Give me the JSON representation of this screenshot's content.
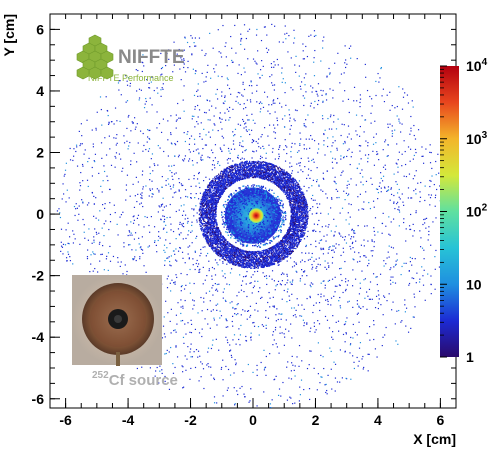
{
  "chart_data": {
    "type": "heatmap",
    "title": "",
    "xlabel": "X [cm]",
    "ylabel": "Y [cm]",
    "xlim": [
      -6.5,
      6.5
    ],
    "ylim": [
      -6.3,
      6.5
    ],
    "x_ticks": [
      "-6",
      "-4",
      "-2",
      "0",
      "2",
      "4",
      "6"
    ],
    "y_ticks": [
      "-6",
      "-4",
      "-2",
      "0",
      "2",
      "4",
      "6"
    ],
    "colorbar": {
      "scale": "log",
      "range": [
        1,
        10000
      ],
      "tick_labels": [
        "1",
        "10",
        "10^2",
        "10^3",
        "10^4"
      ],
      "colormap": [
        "#2a0a6b",
        "#1c2bd4",
        "#1f8fe0",
        "#27c3d6",
        "#5fe0a0",
        "#d4e83a",
        "#f3b52a",
        "#e8461e",
        "#b3000f"
      ]
    },
    "features": [
      {
        "name": "hotspot",
        "center": [
          0.1,
          -0.05
        ],
        "radius_cm": 0.15,
        "peak_counts": 10000
      },
      {
        "name": "inner disk",
        "center": [
          0.0,
          -0.05
        ],
        "radius_cm": 0.9,
        "counts": 30
      },
      {
        "name": "ring",
        "center": [
          0.0,
          0.0
        ],
        "radius_cm": [
          1.2,
          1.75
        ],
        "counts": 2
      },
      {
        "name": "diffuse halo",
        "center": [
          0.0,
          0.0
        ],
        "radius_cm": [
          1.8,
          6.3
        ],
        "counts": 1
      }
    ],
    "grid": false
  },
  "logo": {
    "name": "NIFFTE",
    "subtitle": "NIFFTE Performance",
    "color": "#8cb43c"
  },
  "photo": {
    "caption_superscript": "252",
    "caption": "Cf source"
  }
}
